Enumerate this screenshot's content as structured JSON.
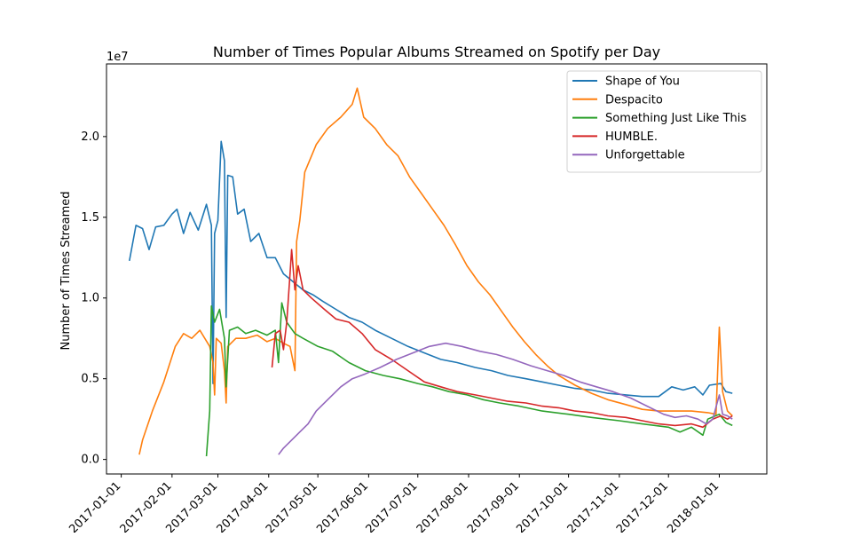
{
  "chart_data": {
    "type": "line",
    "title": "Number of Times Popular Albums Streamed on Spotify per Day",
    "xlabel": "",
    "ylabel": "Number of Times Streamed",
    "y_offset_label": "1e7",
    "xlim": [
      "2016-12-23",
      "2018-01-30"
    ],
    "ylim": [
      -0.09,
      2.45
    ],
    "y_ticks": [
      0.0,
      0.5,
      1.0,
      1.5,
      2.0
    ],
    "y_tick_labels": [
      "0.0",
      "0.5",
      "1.0",
      "1.5",
      "2.0"
    ],
    "x_ticks": [
      "2017-01-01",
      "2017-02-01",
      "2017-03-01",
      "2017-04-01",
      "2017-05-01",
      "2017-06-01",
      "2017-07-01",
      "2017-08-01",
      "2017-09-01",
      "2017-10-01",
      "2017-11-01",
      "2017-12-01",
      "2018-01-01"
    ],
    "x_tick_labels": [
      "2017-01-01",
      "2017-02-01",
      "2017-03-01",
      "2017-04-01",
      "2017-05-01",
      "2017-06-01",
      "2017-07-01",
      "2017-08-01",
      "2017-09-01",
      "2017-10-01",
      "2017-11-01",
      "2017-12-01",
      "2018-01-01"
    ],
    "grid": false,
    "legend_position": "top-right",
    "y_units": "1e7 streams",
    "series": [
      {
        "name": "Shape of You",
        "color": "#1f77b4",
        "points": [
          [
            "2017-01-06",
            1.23
          ],
          [
            "2017-01-10",
            1.45
          ],
          [
            "2017-01-14",
            1.43
          ],
          [
            "2017-01-18",
            1.3
          ],
          [
            "2017-01-22",
            1.44
          ],
          [
            "2017-01-27",
            1.45
          ],
          [
            "2017-02-01",
            1.52
          ],
          [
            "2017-02-04",
            1.55
          ],
          [
            "2017-02-08",
            1.4
          ],
          [
            "2017-02-12",
            1.53
          ],
          [
            "2017-02-17",
            1.42
          ],
          [
            "2017-02-22",
            1.58
          ],
          [
            "2017-02-25",
            1.45
          ],
          [
            "2017-02-26",
            0.47
          ],
          [
            "2017-02-27",
            1.4
          ],
          [
            "2017-03-01",
            1.48
          ],
          [
            "2017-03-03",
            1.97
          ],
          [
            "2017-03-05",
            1.85
          ],
          [
            "2017-03-06",
            0.88
          ],
          [
            "2017-03-07",
            1.76
          ],
          [
            "2017-03-10",
            1.75
          ],
          [
            "2017-03-13",
            1.52
          ],
          [
            "2017-03-17",
            1.55
          ],
          [
            "2017-03-21",
            1.35
          ],
          [
            "2017-03-26",
            1.4
          ],
          [
            "2017-03-31",
            1.25
          ],
          [
            "2017-04-05",
            1.25
          ],
          [
            "2017-04-10",
            1.15
          ],
          [
            "2017-04-16",
            1.1
          ],
          [
            "2017-04-22",
            1.05
          ],
          [
            "2017-04-28",
            1.02
          ],
          [
            "2017-05-04",
            0.98
          ],
          [
            "2017-05-12",
            0.93
          ],
          [
            "2017-05-20",
            0.88
          ],
          [
            "2017-05-28",
            0.85
          ],
          [
            "2017-06-05",
            0.8
          ],
          [
            "2017-06-15",
            0.75
          ],
          [
            "2017-06-25",
            0.7
          ],
          [
            "2017-07-05",
            0.66
          ],
          [
            "2017-07-15",
            0.62
          ],
          [
            "2017-07-25",
            0.6
          ],
          [
            "2017-08-05",
            0.57
          ],
          [
            "2017-08-15",
            0.55
          ],
          [
            "2017-08-25",
            0.52
          ],
          [
            "2017-09-05",
            0.5
          ],
          [
            "2017-09-15",
            0.48
          ],
          [
            "2017-09-25",
            0.46
          ],
          [
            "2017-10-05",
            0.44
          ],
          [
            "2017-10-15",
            0.43
          ],
          [
            "2017-10-25",
            0.41
          ],
          [
            "2017-11-05",
            0.4
          ],
          [
            "2017-11-15",
            0.39
          ],
          [
            "2017-11-25",
            0.39
          ],
          [
            "2017-12-03",
            0.45
          ],
          [
            "2017-12-10",
            0.43
          ],
          [
            "2017-12-17",
            0.45
          ],
          [
            "2017-12-22",
            0.4
          ],
          [
            "2017-12-26",
            0.46
          ],
          [
            "2018-01-02",
            0.47
          ],
          [
            "2018-01-05",
            0.42
          ],
          [
            "2018-01-09",
            0.41
          ]
        ]
      },
      {
        "name": "Despacito",
        "color": "#ff7f0e",
        "points": [
          [
            "2017-01-12",
            0.03
          ],
          [
            "2017-01-14",
            0.12
          ],
          [
            "2017-01-20",
            0.3
          ],
          [
            "2017-01-27",
            0.48
          ],
          [
            "2017-02-03",
            0.7
          ],
          [
            "2017-02-08",
            0.78
          ],
          [
            "2017-02-13",
            0.75
          ],
          [
            "2017-02-18",
            0.8
          ],
          [
            "2017-02-24",
            0.7
          ],
          [
            "2017-02-26",
            0.6
          ],
          [
            "2017-02-27",
            0.4
          ],
          [
            "2017-02-28",
            0.75
          ],
          [
            "2017-03-03",
            0.72
          ],
          [
            "2017-03-05",
            0.55
          ],
          [
            "2017-03-06",
            0.35
          ],
          [
            "2017-03-07",
            0.7
          ],
          [
            "2017-03-12",
            0.75
          ],
          [
            "2017-03-18",
            0.75
          ],
          [
            "2017-03-25",
            0.77
          ],
          [
            "2017-03-31",
            0.73
          ],
          [
            "2017-04-05",
            0.75
          ],
          [
            "2017-04-10",
            0.72
          ],
          [
            "2017-04-14",
            0.7
          ],
          [
            "2017-04-17",
            0.55
          ],
          [
            "2017-04-18",
            1.35
          ],
          [
            "2017-04-20",
            1.48
          ],
          [
            "2017-04-23",
            1.78
          ],
          [
            "2017-04-30",
            1.95
          ],
          [
            "2017-05-07",
            2.05
          ],
          [
            "2017-05-15",
            2.12
          ],
          [
            "2017-05-22",
            2.2
          ],
          [
            "2017-05-25",
            2.3
          ],
          [
            "2017-05-29",
            2.12
          ],
          [
            "2017-06-05",
            2.05
          ],
          [
            "2017-06-12",
            1.95
          ],
          [
            "2017-06-19",
            1.88
          ],
          [
            "2017-06-26",
            1.75
          ],
          [
            "2017-07-03",
            1.65
          ],
          [
            "2017-07-10",
            1.55
          ],
          [
            "2017-07-17",
            1.45
          ],
          [
            "2017-07-24",
            1.33
          ],
          [
            "2017-07-31",
            1.2
          ],
          [
            "2017-08-07",
            1.1
          ],
          [
            "2017-08-14",
            1.02
          ],
          [
            "2017-08-21",
            0.92
          ],
          [
            "2017-08-28",
            0.82
          ],
          [
            "2017-09-04",
            0.73
          ],
          [
            "2017-09-11",
            0.65
          ],
          [
            "2017-09-18",
            0.58
          ],
          [
            "2017-09-25",
            0.52
          ],
          [
            "2017-10-05",
            0.46
          ],
          [
            "2017-10-15",
            0.41
          ],
          [
            "2017-10-25",
            0.37
          ],
          [
            "2017-11-05",
            0.34
          ],
          [
            "2017-11-15",
            0.31
          ],
          [
            "2017-11-25",
            0.3
          ],
          [
            "2017-12-05",
            0.3
          ],
          [
            "2017-12-15",
            0.3
          ],
          [
            "2017-12-25",
            0.29
          ],
          [
            "2017-12-30",
            0.28
          ],
          [
            "2018-01-01",
            0.82
          ],
          [
            "2018-01-03",
            0.42
          ],
          [
            "2018-01-06",
            0.3
          ],
          [
            "2018-01-09",
            0.27
          ]
        ]
      },
      {
        "name": "Something Just Like This",
        "color": "#2ca02c",
        "points": [
          [
            "2017-02-22",
            0.02
          ],
          [
            "2017-02-24",
            0.3
          ],
          [
            "2017-02-25",
            0.95
          ],
          [
            "2017-02-27",
            0.85
          ],
          [
            "2017-03-02",
            0.93
          ],
          [
            "2017-03-05",
            0.75
          ],
          [
            "2017-03-06",
            0.45
          ],
          [
            "2017-03-08",
            0.8
          ],
          [
            "2017-03-13",
            0.82
          ],
          [
            "2017-03-18",
            0.78
          ],
          [
            "2017-03-24",
            0.8
          ],
          [
            "2017-03-31",
            0.77
          ],
          [
            "2017-04-05",
            0.8
          ],
          [
            "2017-04-07",
            0.6
          ],
          [
            "2017-04-09",
            0.97
          ],
          [
            "2017-04-12",
            0.85
          ],
          [
            "2017-04-17",
            0.78
          ],
          [
            "2017-04-22",
            0.75
          ],
          [
            "2017-05-01",
            0.7
          ],
          [
            "2017-05-10",
            0.67
          ],
          [
            "2017-05-20",
            0.6
          ],
          [
            "2017-05-30",
            0.55
          ],
          [
            "2017-06-10",
            0.52
          ],
          [
            "2017-06-20",
            0.5
          ],
          [
            "2017-07-01",
            0.47
          ],
          [
            "2017-07-10",
            0.45
          ],
          [
            "2017-07-20",
            0.42
          ],
          [
            "2017-07-31",
            0.4
          ],
          [
            "2017-08-10",
            0.37
          ],
          [
            "2017-08-20",
            0.35
          ],
          [
            "2017-09-01",
            0.33
          ],
          [
            "2017-09-15",
            0.3
          ],
          [
            "2017-10-01",
            0.28
          ],
          [
            "2017-10-15",
            0.26
          ],
          [
            "2017-11-01",
            0.24
          ],
          [
            "2017-11-15",
            0.22
          ],
          [
            "2017-12-01",
            0.2
          ],
          [
            "2017-12-08",
            0.17
          ],
          [
            "2017-12-15",
            0.2
          ],
          [
            "2017-12-22",
            0.15
          ],
          [
            "2017-12-25",
            0.25
          ],
          [
            "2018-01-01",
            0.28
          ],
          [
            "2018-01-05",
            0.23
          ],
          [
            "2018-01-09",
            0.21
          ]
        ]
      },
      {
        "name": "HUMBLE.",
        "color": "#d62728",
        "points": [
          [
            "2017-04-03",
            0.57
          ],
          [
            "2017-04-05",
            0.78
          ],
          [
            "2017-04-08",
            0.8
          ],
          [
            "2017-04-10",
            0.68
          ],
          [
            "2017-04-12",
            0.85
          ],
          [
            "2017-04-14",
            1.15
          ],
          [
            "2017-04-15",
            1.3
          ],
          [
            "2017-04-17",
            1.05
          ],
          [
            "2017-04-19",
            1.2
          ],
          [
            "2017-04-22",
            1.05
          ],
          [
            "2017-04-27",
            1.0
          ],
          [
            "2017-05-05",
            0.93
          ],
          [
            "2017-05-12",
            0.87
          ],
          [
            "2017-05-20",
            0.85
          ],
          [
            "2017-05-28",
            0.78
          ],
          [
            "2017-06-05",
            0.68
          ],
          [
            "2017-06-15",
            0.62
          ],
          [
            "2017-06-25",
            0.55
          ],
          [
            "2017-07-05",
            0.48
          ],
          [
            "2017-07-15",
            0.45
          ],
          [
            "2017-07-25",
            0.42
          ],
          [
            "2017-08-05",
            0.4
          ],
          [
            "2017-08-15",
            0.38
          ],
          [
            "2017-08-25",
            0.36
          ],
          [
            "2017-09-05",
            0.35
          ],
          [
            "2017-09-15",
            0.33
          ],
          [
            "2017-09-25",
            0.32
          ],
          [
            "2017-10-05",
            0.3
          ],
          [
            "2017-10-15",
            0.29
          ],
          [
            "2017-10-25",
            0.27
          ],
          [
            "2017-11-05",
            0.26
          ],
          [
            "2017-11-15",
            0.24
          ],
          [
            "2017-11-25",
            0.22
          ],
          [
            "2017-12-05",
            0.21
          ],
          [
            "2017-12-15",
            0.22
          ],
          [
            "2017-12-22",
            0.2
          ],
          [
            "2017-12-28",
            0.25
          ],
          [
            "2018-01-02",
            0.27
          ],
          [
            "2018-01-06",
            0.25
          ],
          [
            "2018-01-09",
            0.27
          ]
        ]
      },
      {
        "name": "Unforgettable",
        "color": "#9467bd",
        "points": [
          [
            "2017-04-07",
            0.03
          ],
          [
            "2017-04-10",
            0.07
          ],
          [
            "2017-04-15",
            0.12
          ],
          [
            "2017-04-20",
            0.17
          ],
          [
            "2017-04-25",
            0.22
          ],
          [
            "2017-04-30",
            0.3
          ],
          [
            "2017-05-07",
            0.37
          ],
          [
            "2017-05-15",
            0.45
          ],
          [
            "2017-05-22",
            0.5
          ],
          [
            "2017-05-30",
            0.53
          ],
          [
            "2017-06-08",
            0.57
          ],
          [
            "2017-06-18",
            0.62
          ],
          [
            "2017-06-28",
            0.66
          ],
          [
            "2017-07-08",
            0.7
          ],
          [
            "2017-07-18",
            0.72
          ],
          [
            "2017-07-28",
            0.7
          ],
          [
            "2017-08-08",
            0.67
          ],
          [
            "2017-08-18",
            0.65
          ],
          [
            "2017-08-28",
            0.62
          ],
          [
            "2017-09-08",
            0.58
          ],
          [
            "2017-09-18",
            0.55
          ],
          [
            "2017-09-28",
            0.52
          ],
          [
            "2017-10-08",
            0.48
          ],
          [
            "2017-10-18",
            0.45
          ],
          [
            "2017-10-28",
            0.42
          ],
          [
            "2017-11-08",
            0.38
          ],
          [
            "2017-11-18",
            0.33
          ],
          [
            "2017-11-28",
            0.28
          ],
          [
            "2017-12-05",
            0.26
          ],
          [
            "2017-12-12",
            0.27
          ],
          [
            "2017-12-19",
            0.25
          ],
          [
            "2017-12-24",
            0.22
          ],
          [
            "2017-12-28",
            0.25
          ],
          [
            "2018-01-01",
            0.4
          ],
          [
            "2018-01-03",
            0.28
          ],
          [
            "2018-01-06",
            0.27
          ],
          [
            "2018-01-09",
            0.25
          ]
        ]
      }
    ]
  }
}
